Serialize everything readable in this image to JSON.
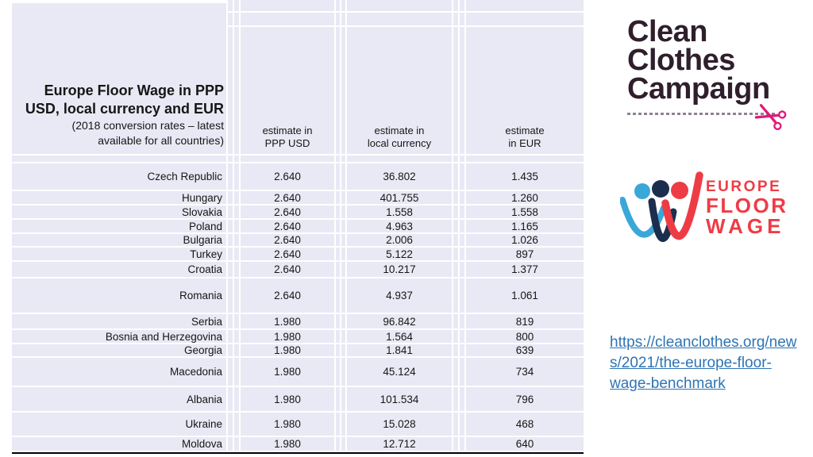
{
  "table": {
    "title": "Europe Floor Wage in PPP\nUSD, local currency and EUR",
    "subtitle": "(2018 conversion rates – latest\navailable for all countries)",
    "columns": [
      "estimate in\nPPP USD",
      "estimate in\nlocal currency",
      "estimate\nin EUR"
    ],
    "rows": [
      {
        "country": "Czech Republic",
        "ppp_usd": "2.640",
        "local_currency": "36.802",
        "eur": "1.435"
      },
      {
        "country": "Hungary",
        "ppp_usd": "2.640",
        "local_currency": "401.755",
        "eur": "1.260"
      },
      {
        "country": "Slovakia",
        "ppp_usd": "2.640",
        "local_currency": "1.558",
        "eur": "1.558"
      },
      {
        "country": "Poland",
        "ppp_usd": "2.640",
        "local_currency": "4.963",
        "eur": "1.165"
      },
      {
        "country": "Bulgaria",
        "ppp_usd": "2.640",
        "local_currency": "2.006",
        "eur": "1.026"
      },
      {
        "country": "Turkey",
        "ppp_usd": "2.640",
        "local_currency": "5.122",
        "eur": "897"
      },
      {
        "country": "Croatia",
        "ppp_usd": "2.640",
        "local_currency": "10.217",
        "eur": "1.377"
      },
      {
        "country": "Romania",
        "ppp_usd": "2.640",
        "local_currency": "4.937",
        "eur": "1.061"
      },
      {
        "country": "Serbia",
        "ppp_usd": "1.980",
        "local_currency": "96.842",
        "eur": "819"
      },
      {
        "country": "Bosnia and Herzegovina",
        "ppp_usd": "1.980",
        "local_currency": "1.564",
        "eur": "800"
      },
      {
        "country": "Georgia",
        "ppp_usd": "1.980",
        "local_currency": "1.841",
        "eur": "639"
      },
      {
        "country": "Macedonia",
        "ppp_usd": "1.980",
        "local_currency": "45.124",
        "eur": "734"
      },
      {
        "country": "Albania",
        "ppp_usd": "1.980",
        "local_currency": "101.534",
        "eur": "796"
      },
      {
        "country": "Ukraine",
        "ppp_usd": "1.980",
        "local_currency": "15.028",
        "eur": "468"
      },
      {
        "country": "Moldova",
        "ppp_usd": "1.980",
        "local_currency": "12.712",
        "eur": "640"
      }
    ]
  },
  "logos": {
    "clean_clothes_campaign": {
      "lines": [
        "Clean",
        "Clothes",
        "Campaign"
      ]
    },
    "europe_floor_wage": {
      "lines": [
        "EUROPE",
        "FLOOR",
        "WAGE"
      ]
    }
  },
  "link": {
    "href": "https://cleanclothes.org/news/2021/the-europe-floor-wage-benchmark",
    "lines": [
      "https://cleanclothes.org/new",
      "s/2021/the-europe-floor-",
      "wage-benchmark"
    ]
  },
  "colors": {
    "cell_background": "#e8e9f4",
    "table_text": "#161616",
    "ccc_dark": "#2f1f2c",
    "scissors_pink": "#e1197c",
    "efw_red": "#ee3c46",
    "efw_blue": "#3aa7d9",
    "efw_navy": "#1c2e4e",
    "link_blue": "#2e74b5",
    "bottom_border": "#000000"
  }
}
